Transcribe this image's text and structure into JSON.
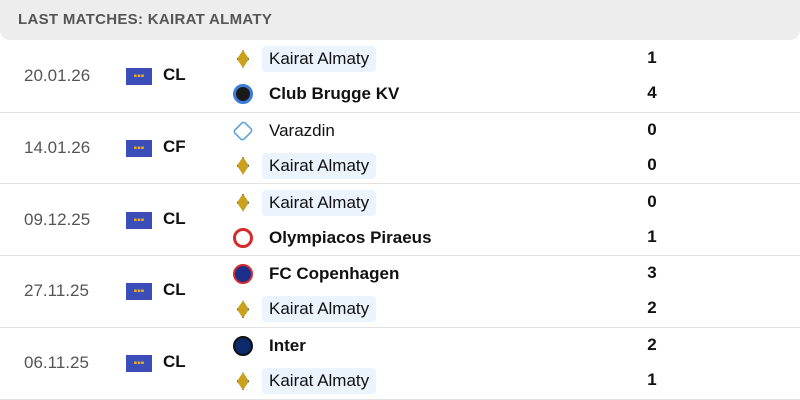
{
  "header": {
    "title": "LAST MATCHES: KAIRAT ALMATY"
  },
  "matches": [
    {
      "date": "20.01.26",
      "competition": "CL",
      "home": {
        "name": "Kairat Almaty",
        "logo": "kairat-logo",
        "score": "1"
      },
      "away": {
        "name": "Club Brugge KV",
        "logo": "club-brugge-logo",
        "score": "4"
      },
      "winner": "away"
    },
    {
      "date": "14.01.26",
      "competition": "CF",
      "home": {
        "name": "Varazdin",
        "logo": "varazdin-logo",
        "score": "0"
      },
      "away": {
        "name": "Kairat Almaty",
        "logo": "kairat-logo",
        "score": "0"
      },
      "winner": "none"
    },
    {
      "date": "09.12.25",
      "competition": "CL",
      "home": {
        "name": "Kairat Almaty",
        "logo": "kairat-logo",
        "score": "0"
      },
      "away": {
        "name": "Olympiacos Piraeus",
        "logo": "olympiacos-logo",
        "score": "1"
      },
      "winner": "away"
    },
    {
      "date": "27.11.25",
      "competition": "CL",
      "home": {
        "name": "FC Copenhagen",
        "logo": "fc-copenhagen-logo",
        "score": "3"
      },
      "away": {
        "name": "Kairat Almaty",
        "logo": "kairat-logo",
        "score": "2"
      },
      "winner": "home"
    },
    {
      "date": "06.11.25",
      "competition": "CL",
      "home": {
        "name": "Inter",
        "logo": "inter-logo",
        "score": "2"
      },
      "away": {
        "name": "Kairat Almaty",
        "logo": "kairat-logo",
        "score": "1"
      },
      "winner": "home"
    }
  ],
  "colors": {
    "highlight": "#ebf3fd",
    "competition_flag": "#3a4db8"
  }
}
